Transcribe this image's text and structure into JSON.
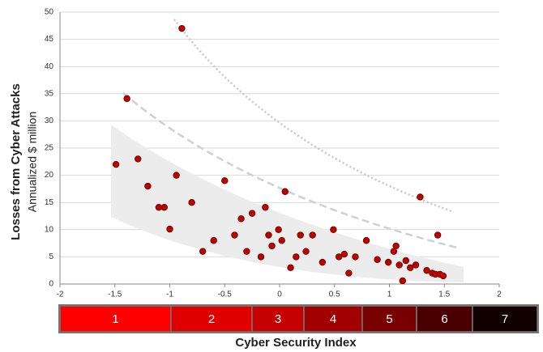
{
  "chart_data": {
    "type": "scatter",
    "y_label": "Losses from Cyber Attacks",
    "y_sublabel": "Annualized $ million",
    "x_label": "Cyber Security Index",
    "color": "#c00000",
    "grid": true,
    "xlim": [
      -2,
      2
    ],
    "xticks": [
      -2,
      -1.5,
      -1,
      -0.5,
      0,
      0.5,
      1,
      1.5,
      2
    ],
    "ylim": [
      0,
      50
    ],
    "yticks": [
      0,
      5,
      10,
      15,
      20,
      25,
      30,
      35,
      40,
      45,
      50
    ],
    "x": [
      -1.49,
      -1.39,
      -1.29,
      -1.2,
      -1.1,
      -1.05,
      -1.0,
      -0.94,
      -0.89,
      -0.8,
      -0.7,
      -0.6,
      -0.5,
      -0.41,
      -0.35,
      -0.3,
      -0.25,
      -0.17,
      -0.13,
      -0.1,
      -0.07,
      -0.01,
      0.02,
      0.05,
      0.1,
      0.15,
      0.19,
      0.24,
      0.3,
      0.39,
      0.49,
      0.54,
      0.59,
      0.63,
      0.69,
      0.79,
      0.89,
      0.99,
      1.04,
      1.06,
      1.09,
      1.12,
      1.15,
      1.19,
      1.24,
      1.28,
      1.34,
      1.39,
      1.42,
      1.44,
      1.46,
      1.49
    ],
    "values": [
      22,
      34.1,
      23,
      18,
      14.1,
      14.1,
      10.1,
      20,
      47,
      15,
      6,
      8,
      19,
      9,
      12,
      6,
      13,
      5,
      14.1,
      9,
      7,
      10,
      8,
      17,
      3,
      5,
      9,
      6,
      9,
      4,
      10,
      5,
      5.5,
      2,
      5,
      8,
      4.5,
      4,
      6,
      7,
      3.5,
      0.6,
      4.3,
      3,
      3.5,
      16,
      2.5,
      2,
      1.8,
      9,
      1.8,
      1.5
    ],
    "index_bar": {
      "labels": [
        "1",
        "2",
        "3",
        "4",
        "5",
        "6",
        "7"
      ],
      "colors": [
        "#ff0000",
        "#e00000",
        "#c40000",
        "#a00000",
        "#780000",
        "#4a0000",
        "#100000"
      ]
    }
  }
}
